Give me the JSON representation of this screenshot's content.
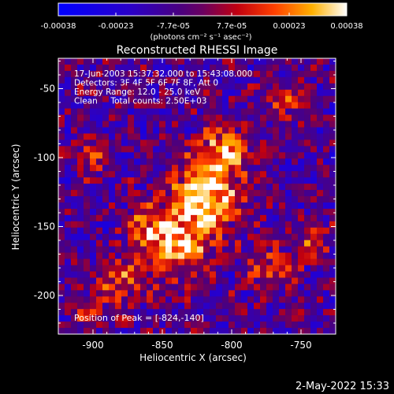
{
  "colorbar": {
    "ticks": [
      "-0.00038",
      "-0.00023",
      "-7.7e-05",
      "7.7e-05",
      "0.00023",
      "0.00038"
    ],
    "unit_label": "(photons cm⁻² s⁻¹ asec⁻²)",
    "range": [
      -0.00038,
      0.00038
    ]
  },
  "chart_data": {
    "type": "heatmap",
    "title": "Reconstructed RHESSI Image",
    "xlabel": "Heliocentric X (arcsec)",
    "ylabel": "Heliocentric Y (arcsec)",
    "xlim": [
      -925,
      -725
    ],
    "ylim": [
      -228,
      -28
    ],
    "xticks": [
      -900,
      -850,
      -800,
      -750
    ],
    "yticks": [
      -50,
      -100,
      -150,
      -200
    ],
    "peak": {
      "x": -824,
      "y": -140
    },
    "info_lines": [
      "17-Jun-2003 15:37:32.000 to 15:43:08.000",
      "Detectors: 3F 4F 5F 6F 7F 8F, Att 0",
      "Energy Range: 12.0 - 25.0 keV",
      "Clean     Total counts: 2.50E+03"
    ],
    "peak_label": "Position of Peak = [-824,-140]",
    "sources": [
      {
        "x": -818,
        "y": -128,
        "sigma": 18,
        "amp": 1.0
      },
      {
        "x": -838,
        "y": -165,
        "sigma": 16,
        "amp": 0.85
      },
      {
        "x": -805,
        "y": -95,
        "sigma": 12,
        "amp": 0.75
      },
      {
        "x": -862,
        "y": -150,
        "sigma": 10,
        "amp": 0.6
      },
      {
        "x": -880,
        "y": -190,
        "sigma": 12,
        "amp": 0.55
      },
      {
        "x": -770,
        "y": -182,
        "sigma": 10,
        "amp": 0.6
      },
      {
        "x": -742,
        "y": -160,
        "sigma": 9,
        "amp": 0.5
      },
      {
        "x": -900,
        "y": -100,
        "sigma": 9,
        "amp": 0.45
      },
      {
        "x": -760,
        "y": -60,
        "sigma": 9,
        "amp": 0.45
      },
      {
        "x": -905,
        "y": -210,
        "sigma": 8,
        "amp": 0.5
      }
    ]
  },
  "footer": {
    "date": "2-May-2022 15:33"
  }
}
